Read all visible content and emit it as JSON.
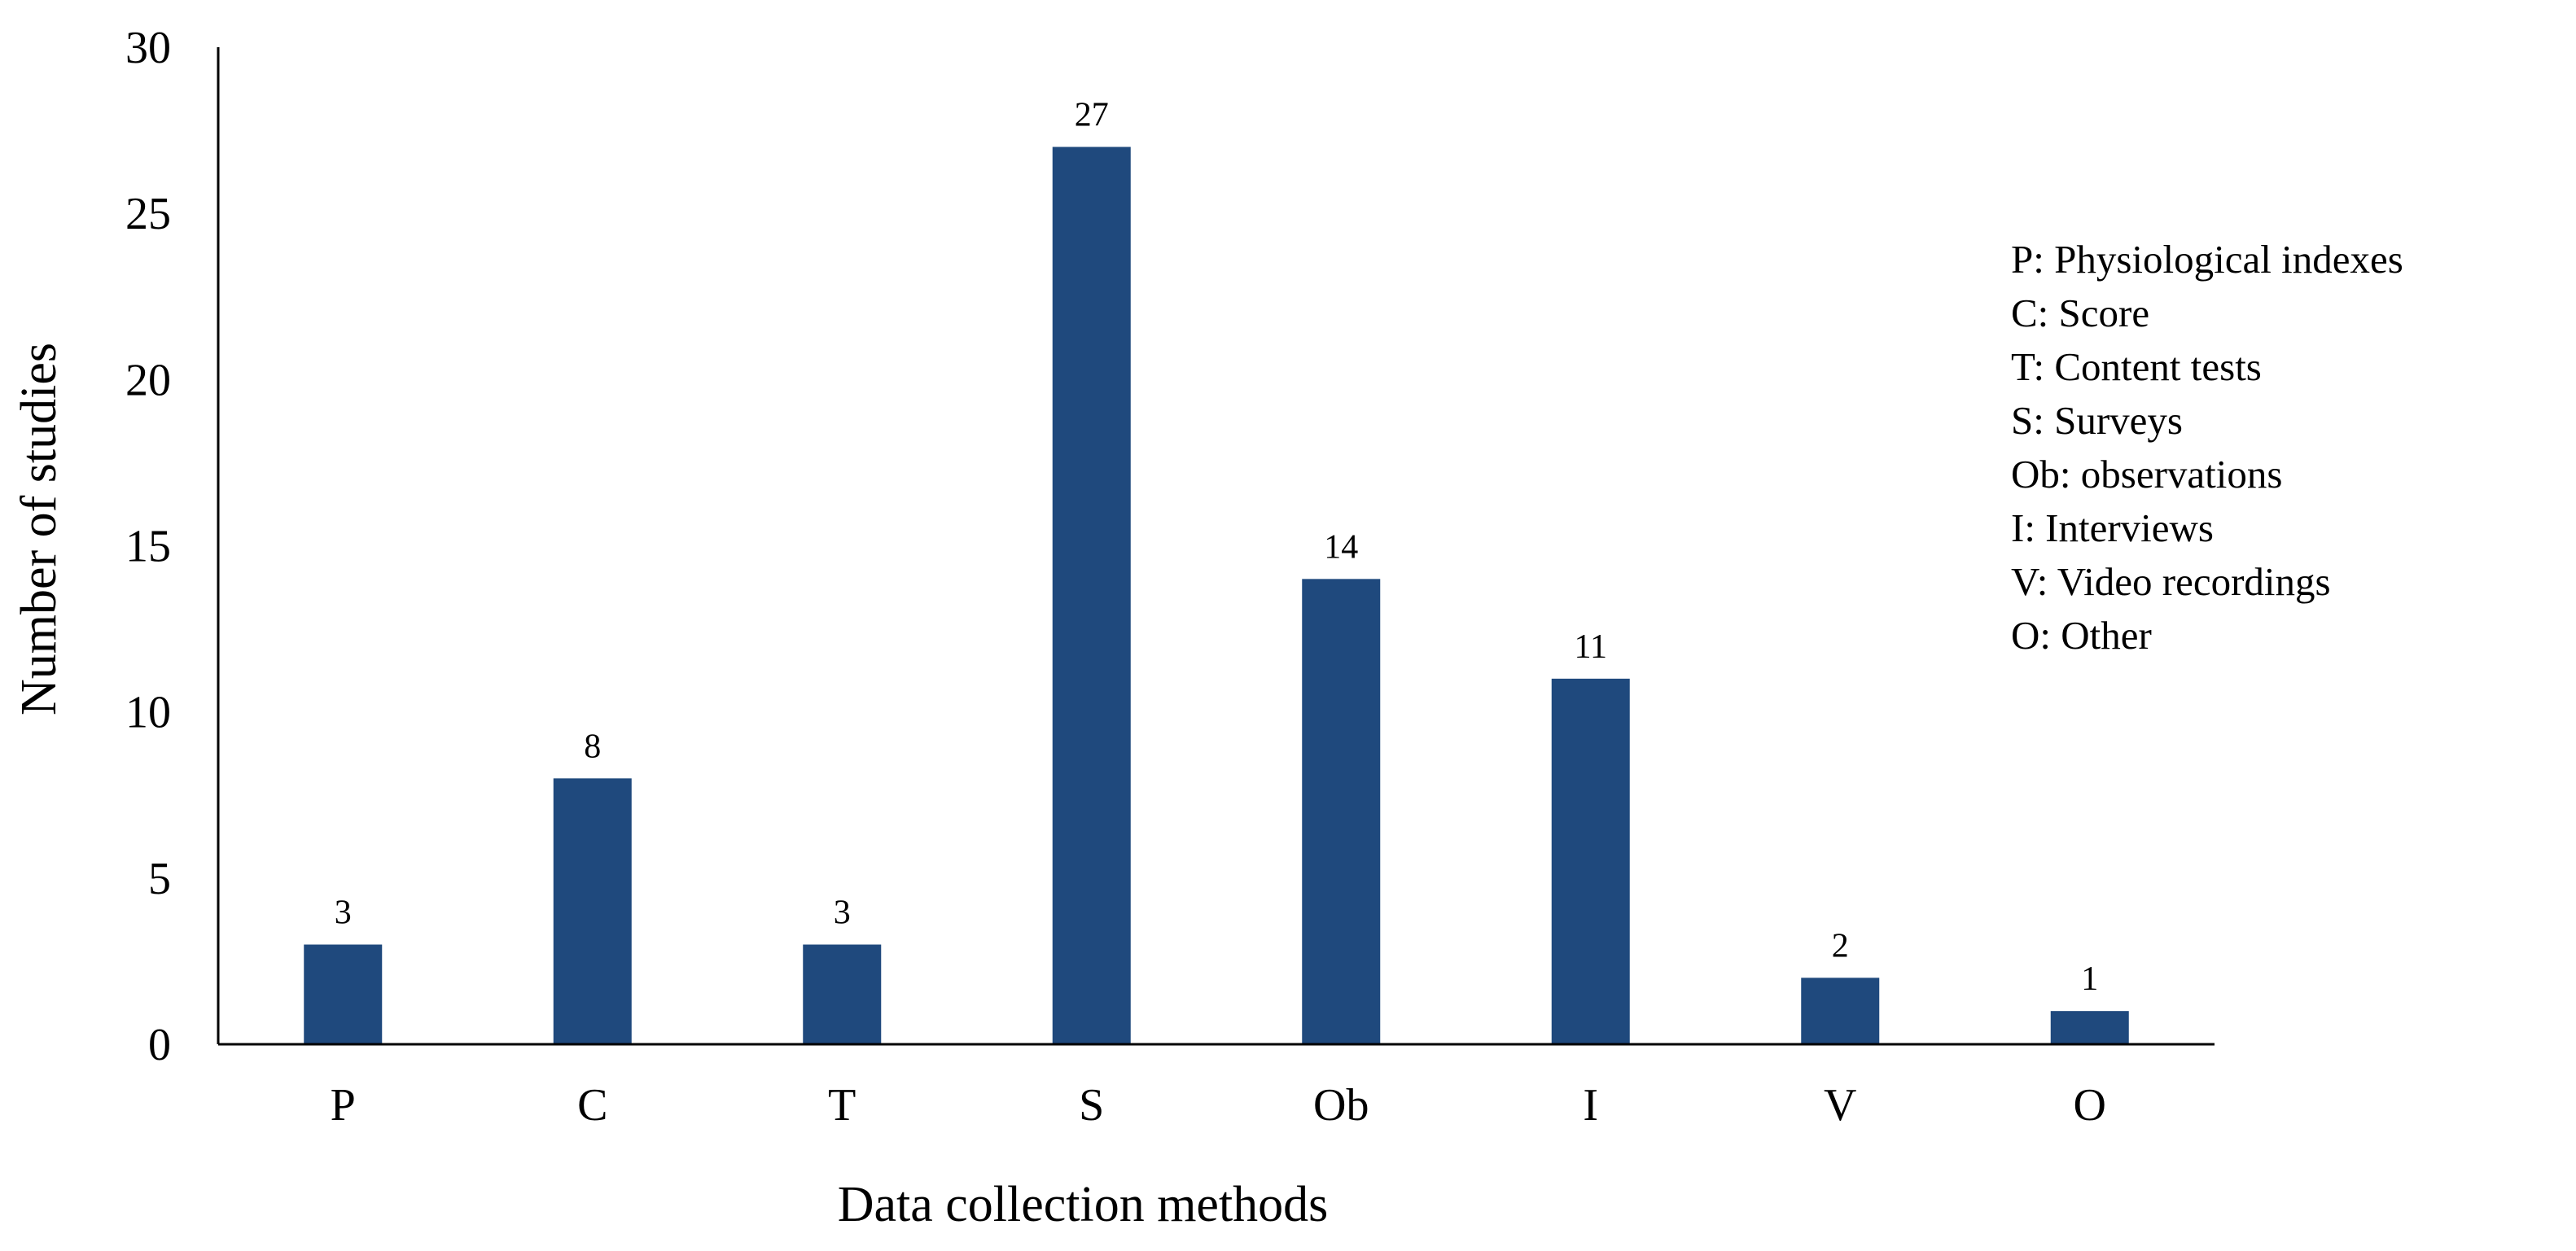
{
  "chart_data": {
    "type": "bar",
    "categories": [
      "P",
      "C",
      "T",
      "S",
      "Ob",
      "I",
      "V",
      "O"
    ],
    "values": [
      3,
      8,
      3,
      27,
      14,
      11,
      2,
      1
    ],
    "data_labels": [
      "3",
      "8",
      "3",
      "27",
      "14",
      "11",
      "2",
      "1"
    ],
    "xlabel": "Data collection methods",
    "ylabel": "Number of studies",
    "ylim": [
      0,
      30
    ],
    "yticks": [
      "0",
      "5",
      "10",
      "15",
      "20",
      "25",
      "30"
    ],
    "grid": false,
    "bar_color": "#1F497D",
    "legend_placement": "right",
    "legend": [
      "P: Physiological indexes",
      "C: Score",
      "T: Content tests",
      "S: Surveys",
      "Ob: observations",
      "I:  Interviews",
      "V: Video recordings",
      "O: Other"
    ]
  }
}
